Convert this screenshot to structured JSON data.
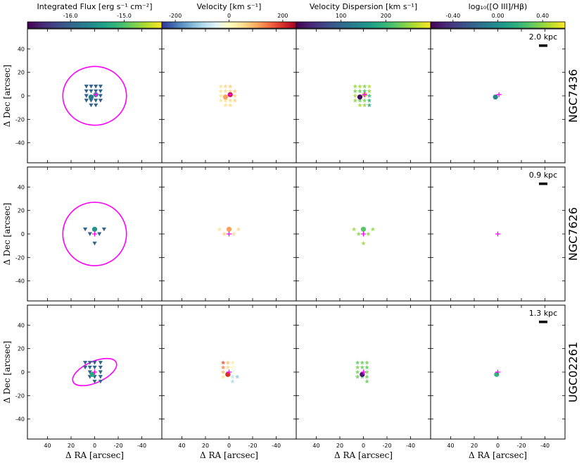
{
  "colorbars": [
    {
      "label": "Integrated Flux [erg s⁻¹ cm⁻²]",
      "cmap": "viridis",
      "range": [
        -16.8,
        -14.3
      ],
      "ticks": [
        {
          "v": -16.0,
          "t": "-16.0"
        },
        {
          "v": -15.0,
          "t": "-15.0"
        }
      ]
    },
    {
      "label": "Velocity [km s⁻¹]",
      "cmap": "rdylbu_r",
      "range": [
        -250,
        250
      ],
      "ticks": [
        {
          "v": -200,
          "t": "-200"
        },
        {
          "v": 0,
          "t": "0"
        },
        {
          "v": 200,
          "t": "200"
        }
      ]
    },
    {
      "label": "Velocity Dispersion [km s⁻¹]",
      "cmap": "viridis",
      "range": [
        0,
        300
      ],
      "ticks": [
        {
          "v": 100,
          "t": "100"
        },
        {
          "v": 200,
          "t": "200"
        }
      ]
    },
    {
      "label": "log₁₀([O III]/Hβ)",
      "cmap": "viridis",
      "range": [
        -0.6,
        0.6
      ],
      "ticks": [
        {
          "v": -0.4,
          "t": "-0.40"
        },
        {
          "v": 0.0,
          "t": "0.00"
        },
        {
          "v": 0.4,
          "t": "0.40"
        }
      ]
    }
  ],
  "axes": {
    "xlabel": "Δ RA [arcsec]",
    "ylabel": "Δ Dec [arcsec]",
    "xlim": [
      57,
      -57
    ],
    "ylim": [
      -57,
      57
    ],
    "xticks": [
      {
        "v": 40,
        "t": "40"
      },
      {
        "v": 20,
        "t": "20"
      },
      {
        "v": 0,
        "t": "0"
      },
      {
        "v": -20,
        "t": "-20"
      },
      {
        "v": -40,
        "t": "-40"
      }
    ],
    "yticks": [
      {
        "v": 40,
        "t": "40"
      },
      {
        "v": 20,
        "t": "20"
      },
      {
        "v": 0,
        "t": "0"
      },
      {
        "v": -20,
        "t": "-20"
      },
      {
        "v": -40,
        "t": "-40"
      }
    ]
  },
  "chart_data": {
    "type": "scatter",
    "galaxies": [
      {
        "name": "NGC7436",
        "scalebar": "2.0 kpc",
        "ellipse": {
          "cx": 0,
          "cy": 0,
          "rx": 27,
          "ry": 25,
          "angle": 0
        },
        "center_cross": {
          "x": -1,
          "y": 1
        },
        "flux": {
          "triangles": [
            {
              "x": 7,
              "y": 8
            },
            {
              "x": 3,
              "y": 8
            },
            {
              "x": -1,
              "y": 8
            },
            {
              "x": -5,
              "y": 8
            },
            {
              "x": 7,
              "y": 4
            },
            {
              "x": 3,
              "y": 4
            },
            {
              "x": -1,
              "y": 4
            },
            {
              "x": -5,
              "y": 4
            },
            {
              "x": 7,
              "y": 0
            },
            {
              "x": -5,
              "y": 0
            },
            {
              "x": 7,
              "y": -4
            },
            {
              "x": 3,
              "y": -4
            },
            {
              "x": -1,
              "y": -4
            },
            {
              "x": -5,
              "y": -4
            },
            {
              "x": 3,
              "y": -8
            },
            {
              "x": -1,
              "y": -8
            }
          ],
          "tri_value": -16.0,
          "circles": [
            {
              "x": 3,
              "y": -1,
              "v": -15.8
            },
            {
              "x": -1,
              "y": 1,
              "v": -15.3
            }
          ]
        },
        "velocity": {
          "stars": [
            {
              "x": 7,
              "y": 8,
              "v": 50
            },
            {
              "x": 3,
              "y": 8,
              "v": 60
            },
            {
              "x": -1,
              "y": 8,
              "v": 70
            },
            {
              "x": 7,
              "y": 4,
              "v": 40
            },
            {
              "x": 3,
              "y": 4,
              "v": 55
            },
            {
              "x": -1,
              "y": 4,
              "v": 60
            },
            {
              "x": -5,
              "y": 4,
              "v": 70
            },
            {
              "x": 7,
              "y": 0,
              "v": 45
            },
            {
              "x": -5,
              "y": 0,
              "v": 65
            },
            {
              "x": 7,
              "y": -4,
              "v": 40
            },
            {
              "x": 3,
              "y": -4,
              "v": 50
            },
            {
              "x": -1,
              "y": -4,
              "v": 55
            },
            {
              "x": -5,
              "y": -4,
              "v": 65
            },
            {
              "x": 3,
              "y": -8,
              "v": 45
            },
            {
              "x": -1,
              "y": -8,
              "v": 55
            }
          ],
          "circles": [
            {
              "x": 3,
              "y": -1,
              "v": 110
            },
            {
              "x": -1,
              "y": 1,
              "v": 220
            }
          ]
        },
        "dispersion": {
          "stars": [
            {
              "x": 7,
              "y": 8,
              "v": 250
            },
            {
              "x": 3,
              "y": 8,
              "v": 260
            },
            {
              "x": -1,
              "y": 8,
              "v": 240
            },
            {
              "x": -5,
              "y": 8,
              "v": 270
            },
            {
              "x": 7,
              "y": 4,
              "v": 240
            },
            {
              "x": 3,
              "y": 4,
              "v": 230
            },
            {
              "x": -1,
              "y": 4,
              "v": 210
            },
            {
              "x": -5,
              "y": 4,
              "v": 250
            },
            {
              "x": 7,
              "y": 0,
              "v": 260
            },
            {
              "x": -5,
              "y": 0,
              "v": 200
            },
            {
              "x": 7,
              "y": -4,
              "v": 250
            },
            {
              "x": 3,
              "y": -4,
              "v": 230
            },
            {
              "x": -1,
              "y": -4,
              "v": 240
            },
            {
              "x": -5,
              "y": -4,
              "v": 190
            },
            {
              "x": 3,
              "y": -8,
              "v": 260
            },
            {
              "x": -1,
              "y": -8,
              "v": 250
            },
            {
              "x": -5,
              "y": -8,
              "v": 180
            }
          ],
          "circles": [
            {
              "x": -1,
              "y": 1,
              "v": 270
            },
            {
              "x": 3,
              "y": -1,
              "v": 10
            }
          ]
        },
        "oiii": {
          "circles": [
            {
              "x": 2,
              "y": -1,
              "v": -0.05
            }
          ]
        }
      },
      {
        "name": "NGC7626",
        "scalebar": "0.9 kpc",
        "ellipse": {
          "cx": 0,
          "cy": 0,
          "rx": 27,
          "ry": 27,
          "angle": 0
        },
        "center_cross": {
          "x": 0,
          "y": 0
        },
        "flux": {
          "triangles": [
            {
              "x": 8,
              "y": 4
            },
            {
              "x": -8,
              "y": 4
            },
            {
              "x": 4,
              "y": 0
            },
            {
              "x": -4,
              "y": 0
            },
            {
              "x": 0,
              "y": -8
            }
          ],
          "tri_value": -16.0,
          "circles": [
            {
              "x": 0,
              "y": 4,
              "v": -15.5
            }
          ]
        },
        "velocity": {
          "stars": [
            {
              "x": 8,
              "y": 4,
              "v": 50
            },
            {
              "x": -8,
              "y": 4,
              "v": 60
            },
            {
              "x": 4,
              "y": 0,
              "v": 70
            },
            {
              "x": -4,
              "y": 0,
              "v": 60
            }
          ],
          "circles": [
            {
              "x": 0,
              "y": 4,
              "v": 110
            }
          ]
        },
        "dispersion": {
          "stars": [
            {
              "x": 8,
              "y": 4,
              "v": 255
            },
            {
              "x": -8,
              "y": 4,
              "v": 250
            },
            {
              "x": 4,
              "y": 0,
              "v": 245
            },
            {
              "x": -4,
              "y": 0,
              "v": 250
            },
            {
              "x": 0,
              "y": -8,
              "v": 255
            }
          ],
          "circles": [
            {
              "x": 0,
              "y": 4,
              "v": 220
            }
          ]
        },
        "oiii": {
          "circles": []
        }
      },
      {
        "name": "UGC02261",
        "scalebar": "1.3 kpc",
        "ellipse": {
          "cx": 0,
          "cy": 0,
          "rx": 20,
          "ry": 9,
          "angle": -24
        },
        "center_cross": {
          "x": 0,
          "y": 0
        },
        "flux": {
          "triangles": [
            {
              "x": 8,
              "y": 8
            },
            {
              "x": 4,
              "y": 8
            },
            {
              "x": 0,
              "y": 8
            },
            {
              "x": -5,
              "y": 8
            },
            {
              "x": 8,
              "y": 4
            },
            {
              "x": 4,
              "y": 4
            },
            {
              "x": 0,
              "y": 4
            },
            {
              "x": -5,
              "y": 4
            },
            {
              "x": 4,
              "y": 0
            },
            {
              "x": -5,
              "y": 0
            },
            {
              "x": 4,
              "y": -4
            },
            {
              "x": 0,
              "y": -4
            },
            {
              "x": -5,
              "y": -4
            },
            {
              "x": 0,
              "y": -8
            },
            {
              "x": -5,
              "y": -8
            }
          ],
          "tri_value": -16.0,
          "circles": [
            {
              "x": 2,
              "y": -2,
              "v": -15.3
            }
          ]
        },
        "velocity": {
          "stars": [
            {
              "x": 5,
              "y": 8,
              "v": 170
            },
            {
              "x": 1,
              "y": 8,
              "v": 80
            },
            {
              "x": -3,
              "y": 8,
              "v": 30
            },
            {
              "x": 5,
              "y": 4,
              "v": 130
            },
            {
              "x": 1,
              "y": 4,
              "v": 60
            },
            {
              "x": -3,
              "y": 4,
              "v": 10
            },
            {
              "x": 5,
              "y": 0,
              "v": 90
            },
            {
              "x": -3,
              "y": 0,
              "v": -30
            },
            {
              "x": 5,
              "y": -4,
              "v": 50
            },
            {
              "x": 1,
              "y": -4,
              "v": -20
            },
            {
              "x": -3,
              "y": -4,
              "v": -80
            },
            {
              "x": -7,
              "y": -4,
              "v": -120
            },
            {
              "x": -3,
              "y": -8,
              "v": -100
            }
          ],
          "circles": [
            {
              "x": 1,
              "y": -2,
              "v": 200
            }
          ]
        },
        "dispersion": {
          "stars": [
            {
              "x": 5,
              "y": 8,
              "v": 225
            },
            {
              "x": 1,
              "y": 8,
              "v": 230
            },
            {
              "x": -3,
              "y": 8,
              "v": 235
            },
            {
              "x": 5,
              "y": 4,
              "v": 240
            },
            {
              "x": 1,
              "y": 4,
              "v": 230
            },
            {
              "x": -3,
              "y": 4,
              "v": 225
            },
            {
              "x": 5,
              "y": 0,
              "v": 235
            },
            {
              "x": -3,
              "y": 0,
              "v": 240
            },
            {
              "x": 5,
              "y": -4,
              "v": 230
            },
            {
              "x": 1,
              "y": -4,
              "v": 225
            },
            {
              "x": -3,
              "y": -4,
              "v": 235
            },
            {
              "x": -3,
              "y": -8,
              "v": 230
            }
          ],
          "circles": [
            {
              "x": 1,
              "y": -2,
              "v": 20
            }
          ]
        },
        "oiii": {
          "circles": [
            {
              "x": 1,
              "y": -2,
              "v": 0.2
            }
          ]
        }
      }
    ]
  }
}
